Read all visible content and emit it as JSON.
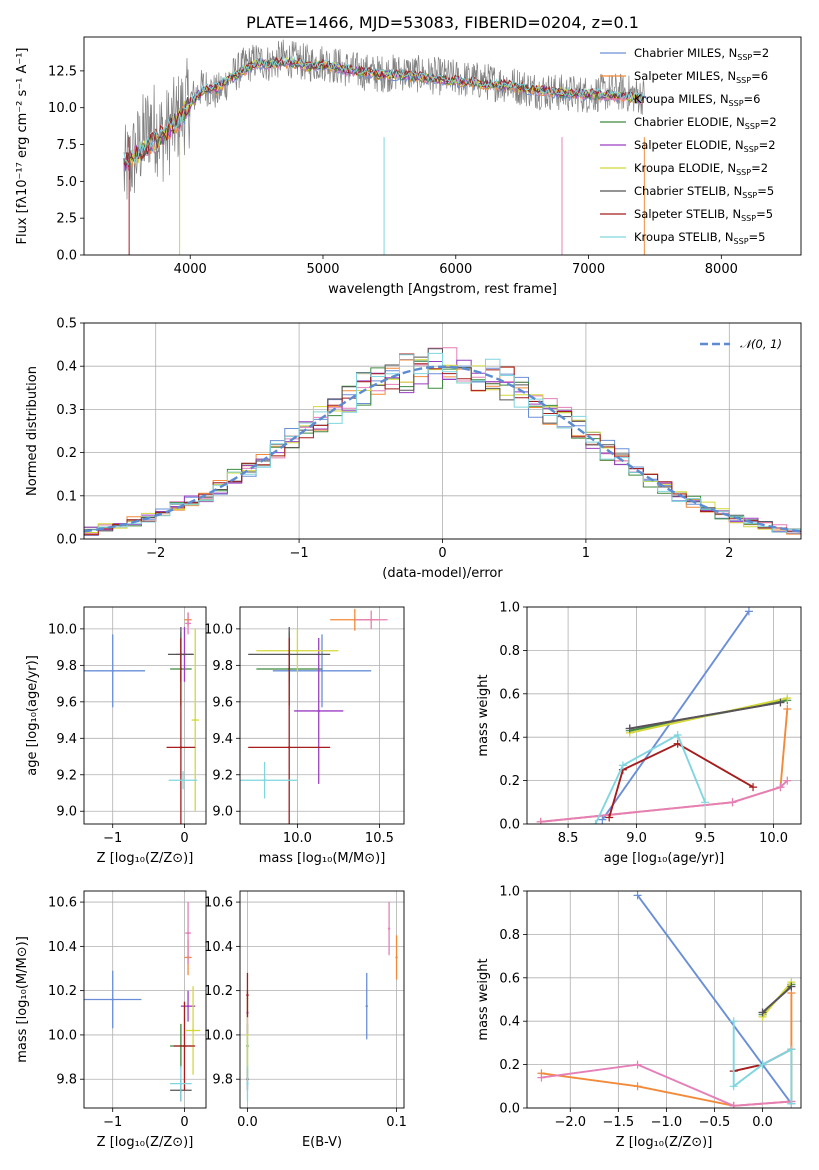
{
  "chart_data": [
    {
      "id": "spectrum",
      "type": "line",
      "title": "PLATE=1466, MJD=53083, FIBERID=0204, z=0.1",
      "xlabel": "wavelength [Angstrom, rest frame]",
      "ylabel": "Flux [fλ10⁻¹⁷ erg cm⁻² s⁻¹ A⁻¹]",
      "xlim": [
        3200,
        8600
      ],
      "ylim": [
        0,
        14.8
      ],
      "xticks": [
        4000,
        5000,
        6000,
        7000,
        8000
      ],
      "yticks": [
        0.0,
        2.5,
        5.0,
        7.5,
        10.0,
        12.5
      ],
      "legend_position": "right",
      "observed_flux": {
        "x": [
          3500,
          3600,
          3700,
          3800,
          3900,
          4000,
          4100,
          4200,
          4300,
          4400,
          4500,
          4600,
          4700,
          4800,
          4900,
          5000,
          5200,
          5400,
          5600,
          5800,
          6000,
          6200,
          6400,
          6600,
          6800,
          7000,
          7200,
          7400
        ],
        "y": [
          5.5,
          7.0,
          9.0,
          8.0,
          9.2,
          10.5,
          11.5,
          11.0,
          12.0,
          12.8,
          13.2,
          13.0,
          13.4,
          13.2,
          13.0,
          13.1,
          12.6,
          12.3,
          12.4,
          12.2,
          12.0,
          11.8,
          11.6,
          11.2,
          11.0,
          10.9,
          11.1,
          10.8
        ]
      },
      "series": [
        {
          "name": "Chabrier MILES, N$_{SSP}$=2",
          "color": "#6a8fd8"
        },
        {
          "name": "Salpeter MILES, N$_{SSP}$=6",
          "color": "#f28a3a"
        },
        {
          "name": "Kroupa MILES, N$_{SSP}$=6",
          "color": "#e57fb8"
        },
        {
          "name": "Chabrier ELODIE, N$_{SSP}$=2",
          "color": "#3f8a3f"
        },
        {
          "name": "Salpeter ELODIE, N$_{SSP}$=2",
          "color": "#9c3fc2"
        },
        {
          "name": "Kroupa ELODIE, N$_{SSP}$=2",
          "color": "#d4d83a"
        },
        {
          "name": "Chabrier STELIB, N$_{SSP}$=5",
          "color": "#555555"
        },
        {
          "name": "Salpeter STELIB, N$_{SSP}$=5",
          "color": "#a51d1d"
        },
        {
          "name": "Kroupa STELIB, N$_{SSP}$=5",
          "color": "#7fd6df"
        }
      ],
      "model_spectrum": {
        "x": [
          3500,
          3600,
          3700,
          3800,
          3900,
          4000,
          4100,
          4200,
          4300,
          4400,
          4500,
          4600,
          4700,
          4800,
          4900,
          5000,
          5200,
          5400,
          5600,
          5800,
          6000,
          6200,
          6400,
          6600,
          6800,
          7000,
          7200,
          7400,
          7600,
          7800,
          8000,
          8200,
          8400
        ],
        "y": [
          6.2,
          6.8,
          7.5,
          8.2,
          9.0,
          10.3,
          11.2,
          11.3,
          12.0,
          12.5,
          13.0,
          12.9,
          13.1,
          13.0,
          12.8,
          12.9,
          12.5,
          12.3,
          12.2,
          12.0,
          11.8,
          11.6,
          11.5,
          11.2,
          11.0,
          10.9,
          10.8,
          10.6,
          10.5,
          10.3,
          10.2,
          10.0,
          9.9
        ]
      }
    },
    {
      "id": "residuals",
      "type": "bar",
      "xlabel": "(data-model)/error",
      "ylabel": "Normed distribution",
      "xlim": [
        -2.5,
        2.5
      ],
      "ylim": [
        0,
        0.5
      ],
      "xticks": [
        -2,
        -1,
        0,
        1,
        2
      ],
      "yticks": [
        0.0,
        0.1,
        0.2,
        0.3,
        0.4,
        0.5
      ],
      "legend": [
        {
          "name": "$\\mathcal{N}(0,1)$",
          "style": "dashed",
          "color": "#5b8bd0"
        }
      ],
      "legend_position": "top-right",
      "bin_width": 0.1
    },
    {
      "id": "age-vs-Z",
      "type": "scatter",
      "xlabel": "Z [log₁₀(Z/Z⊙)]",
      "ylabel": "age  [log₁₀(age/yr)]",
      "xlim": [
        -1.4,
        0.3
      ],
      "ylim": [
        8.93,
        10.12
      ],
      "xticks": [
        -1,
        0
      ],
      "yticks": [
        9.0,
        9.2,
        9.4,
        9.6,
        9.8,
        10.0
      ],
      "points": [
        {
          "series": 0,
          "x": -1.0,
          "y": 9.77,
          "xerr": 0.45,
          "yerr": 0.2
        },
        {
          "series": 1,
          "x": 0.05,
          "y": 10.05,
          "xerr": 0.05,
          "yerr": 0.04
        },
        {
          "series": 2,
          "x": 0.05,
          "y": 10.03,
          "xerr": 0.04,
          "yerr": 0.06
        },
        {
          "series": 3,
          "x": -0.05,
          "y": 9.78,
          "xerr": 0.15,
          "yerr": 0.2
        },
        {
          "series": 4,
          "x": 0.0,
          "y": 9.86,
          "xerr": 0.12,
          "yerr": 0.15
        },
        {
          "series": 5,
          "x": 0.15,
          "y": 9.5,
          "xerr": 0.05,
          "yerr": 0.5
        },
        {
          "series": 6,
          "x": -0.05,
          "y": 9.86,
          "xerr": 0.18,
          "yerr": 0.15
        },
        {
          "series": 7,
          "x": -0.05,
          "y": 9.35,
          "xerr": 0.2,
          "yerr": 0.6
        },
        {
          "series": 8,
          "x": -0.02,
          "y": 9.17,
          "xerr": 0.2,
          "yerr": 0.05
        }
      ]
    },
    {
      "id": "age-vs-mass",
      "type": "scatter",
      "xlabel": "mass [log₁₀(M/M⊙)]",
      "ylabel": "",
      "xlim": [
        9.65,
        10.65
      ],
      "ylim": [
        8.93,
        10.12
      ],
      "xticks": [
        10.0,
        10.5
      ],
      "yticks": [
        9.0,
        9.2,
        9.4,
        9.6,
        9.8,
        10.0
      ],
      "points": [
        {
          "series": 0,
          "x": 10.15,
          "y": 9.77,
          "xerr": 0.3,
          "yerr": 0.2
        },
        {
          "series": 1,
          "x": 10.35,
          "y": 10.05,
          "xerr": 0.15,
          "yerr": 0.06
        },
        {
          "series": 2,
          "x": 10.45,
          "y": 10.05,
          "xerr": 0.1,
          "yerr": 0.05
        },
        {
          "series": 3,
          "x": 9.95,
          "y": 9.78,
          "xerr": 0.2,
          "yerr": 0.2
        },
        {
          "series": 4,
          "x": 10.13,
          "y": 9.55,
          "xerr": 0.15,
          "yerr": 0.4
        },
        {
          "series": 5,
          "x": 10.0,
          "y": 9.88,
          "xerr": 0.25,
          "yerr": 0.12
        },
        {
          "series": 6,
          "x": 9.95,
          "y": 9.86,
          "xerr": 0.25,
          "yerr": 0.15
        },
        {
          "series": 7,
          "x": 9.95,
          "y": 9.35,
          "xerr": 0.25,
          "yerr": 0.6
        },
        {
          "series": 8,
          "x": 9.8,
          "y": 9.17,
          "xerr": 0.2,
          "yerr": 0.1
        }
      ]
    },
    {
      "id": "weight-vs-age",
      "type": "line",
      "xlabel": "age  [log₁₀(age/yr)]",
      "ylabel": "mass weight",
      "xlim": [
        8.2,
        10.2
      ],
      "ylim": [
        0,
        1.0
      ],
      "xticks": [
        8.5,
        9.0,
        9.5,
        10.0
      ],
      "yticks": [
        0.0,
        0.2,
        0.4,
        0.6,
        0.8,
        1.0
      ],
      "series": [
        {
          "series": 0,
          "x": [
            8.75,
            9.82
          ],
          "y": [
            0.02,
            0.98
          ]
        },
        {
          "series": 1,
          "x": [
            8.3,
            9.7,
            10.05,
            10.1
          ],
          "y": [
            0.01,
            0.1,
            0.17,
            0.53
          ]
        },
        {
          "series": 2,
          "x": [
            8.3,
            9.7,
            10.05,
            10.1
          ],
          "y": [
            0.01,
            0.1,
            0.17,
            0.2
          ]
        },
        {
          "series": 3,
          "x": [
            8.95,
            10.1
          ],
          "y": [
            0.43,
            0.57
          ]
        },
        {
          "series": 4,
          "x": [
            8.95,
            10.05
          ],
          "y": [
            0.44,
            0.56
          ]
        },
        {
          "series": 5,
          "x": [
            8.95,
            10.1
          ],
          "y": [
            0.42,
            0.58
          ]
        },
        {
          "series": 6,
          "x": [
            8.95,
            10.05
          ],
          "y": [
            0.44,
            0.56
          ]
        },
        {
          "series": 7,
          "x": [
            8.8,
            8.9,
            9.3,
            9.85
          ],
          "y": [
            0.03,
            0.25,
            0.37,
            0.17
          ]
        },
        {
          "series": 8,
          "x": [
            8.7,
            8.9,
            9.3,
            9.5
          ],
          "y": [
            0.0,
            0.27,
            0.41,
            0.1
          ]
        }
      ]
    },
    {
      "id": "mass-vs-Z",
      "type": "scatter",
      "xlabel": "Z [log₁₀(Z/Z⊙)]",
      "ylabel": "mass [log₁₀(M/M⊙)]",
      "xlim": [
        -1.4,
        0.3
      ],
      "ylim": [
        9.67,
        10.65
      ],
      "xticks": [
        -1,
        0
      ],
      "yticks": [
        9.8,
        10.0,
        10.2,
        10.4,
        10.6
      ],
      "points": [
        {
          "series": 0,
          "x": -1.0,
          "y": 10.16,
          "xerr": 0.4,
          "yerr": 0.13
        },
        {
          "series": 1,
          "x": 0.05,
          "y": 10.35,
          "xerr": 0.05,
          "yerr": 0.08
        },
        {
          "series": 2,
          "x": 0.05,
          "y": 10.46,
          "xerr": 0.04,
          "yerr": 0.14
        },
        {
          "series": 3,
          "x": -0.05,
          "y": 9.95,
          "xerr": 0.15,
          "yerr": 0.1
        },
        {
          "series": 4,
          "x": 0.05,
          "y": 10.13,
          "xerr": 0.1,
          "yerr": 0.07
        },
        {
          "series": 5,
          "x": 0.12,
          "y": 10.02,
          "xerr": 0.1,
          "yerr": 0.2
        },
        {
          "series": 6,
          "x": -0.05,
          "y": 9.75,
          "xerr": 0.15,
          "yerr": 0.05
        },
        {
          "series": 7,
          "x": 0.0,
          "y": 9.95,
          "xerr": 0.15,
          "yerr": 0.2
        },
        {
          "series": 8,
          "x": -0.05,
          "y": 9.78,
          "xerr": 0.15,
          "yerr": 0.08
        }
      ]
    },
    {
      "id": "mass-vs-EBV",
      "type": "scatter",
      "xlabel": "E(B-V)",
      "ylabel": "",
      "xlim": [
        -0.005,
        0.105
      ],
      "ylim": [
        9.67,
        10.65
      ],
      "xticks": [
        0.0,
        0.1
      ],
      "yticks": [
        9.8,
        10.0,
        10.2,
        10.4,
        10.6
      ],
      "points": [
        {
          "series": 0,
          "x": 0.08,
          "y": 10.13,
          "yerr": 0.15
        },
        {
          "series": 1,
          "x": 0.1,
          "y": 10.35,
          "yerr": 0.1
        },
        {
          "series": 2,
          "x": 0.095,
          "y": 10.48,
          "yerr": 0.12
        },
        {
          "series": 3,
          "x": 0.0,
          "y": 9.95,
          "yerr": 0.1
        },
        {
          "series": 4,
          "x": 0.0,
          "y": 10.1,
          "yerr": 0.1
        },
        {
          "series": 5,
          "x": 0.0,
          "y": 10.0,
          "yerr": 0.2
        },
        {
          "series": 6,
          "x": 0.0,
          "y": 9.8,
          "yerr": 0.05
        },
        {
          "series": 7,
          "x": 0.0,
          "y": 10.18,
          "yerr": 0.1
        },
        {
          "series": 8,
          "x": 0.0,
          "y": 9.78,
          "yerr": 0.08
        }
      ]
    },
    {
      "id": "weight-vs-Z",
      "type": "line",
      "xlabel": "Z [log₁₀(Z/Z⊙)]",
      "ylabel": "mass weight",
      "xlim": [
        -2.45,
        0.4
      ],
      "ylim": [
        0,
        1.0
      ],
      "xticks": [
        -2.0,
        -1.5,
        -1.0,
        -0.5,
        0.0
      ],
      "yticks": [
        0.0,
        0.2,
        0.4,
        0.6,
        0.8,
        1.0
      ],
      "series": [
        {
          "series": 0,
          "x": [
            -1.3,
            0.3
          ],
          "y": [
            0.98,
            0.02
          ]
        },
        {
          "series": 1,
          "x": [
            -2.3,
            -1.3,
            -0.3,
            0.3,
            0.3
          ],
          "y": [
            0.16,
            0.1,
            0.01,
            0.03,
            0.53
          ]
        },
        {
          "series": 2,
          "x": [
            -2.3,
            -1.3,
            -0.3,
            0.3
          ],
          "y": [
            0.14,
            0.2,
            0.01,
            0.03
          ]
        },
        {
          "series": 3,
          "x": [
            0.0,
            0.3
          ],
          "y": [
            0.43,
            0.57
          ]
        },
        {
          "series": 4,
          "x": [
            0.0,
            0.3
          ],
          "y": [
            0.44,
            0.56
          ]
        },
        {
          "series": 5,
          "x": [
            0.0,
            0.3
          ],
          "y": [
            0.42,
            0.58
          ]
        },
        {
          "series": 6,
          "x": [
            0.0,
            0.3
          ],
          "y": [
            0.44,
            0.56
          ]
        },
        {
          "series": 7,
          "x": [
            -0.3,
            0.0,
            0.3
          ],
          "y": [
            0.17,
            0.2,
            0.27
          ]
        },
        {
          "series": 8,
          "x": [
            -0.3,
            -0.3,
            0.0,
            0.3,
            0.3
          ],
          "y": [
            0.4,
            0.1,
            0.2,
            0.27,
            0.02
          ]
        }
      ]
    }
  ]
}
